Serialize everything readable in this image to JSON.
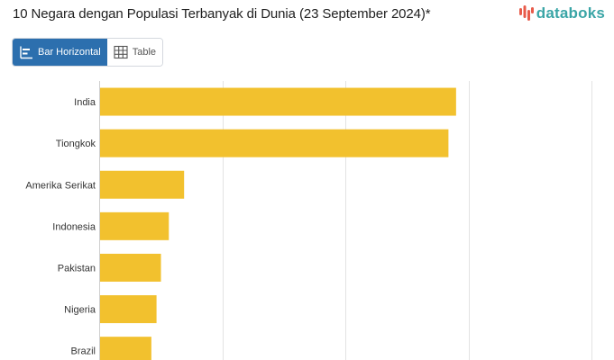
{
  "header": {
    "title": "10 Negara dengan Populasi Terbanyak di Dunia (23 September 2024)*",
    "brand": "databoks"
  },
  "toggle": {
    "bar_label": "Bar Horizontal",
    "table_label": "Table"
  },
  "colors": {
    "bar": "#f2c12e",
    "active": "#2c6fae",
    "brand": "#3aa5a6",
    "grid": "#e3e3e3"
  },
  "chart_data": {
    "type": "bar",
    "orientation": "horizontal",
    "categories": [
      "India",
      "Tiongkok",
      "Amerika Serikat",
      "Indonesia",
      "Pakistan",
      "Nigeria",
      "Brazil"
    ],
    "values": [
      1450,
      1419,
      345,
      283,
      251,
      233,
      212
    ],
    "xlim": [
      0,
      2000
    ],
    "grid": true
  }
}
